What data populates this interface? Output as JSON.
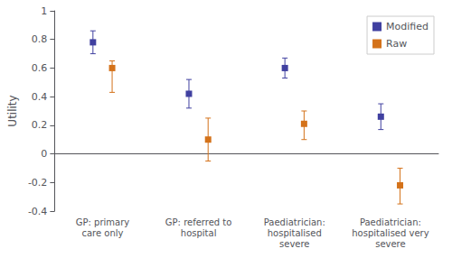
{
  "chart_data": {
    "type": "scatter",
    "categories": [
      "GP: primary\ncare only",
      "GP: referred to\nhospital",
      "Paediatrician:\nhospitalised\nsevere",
      "Paediatrician:\nhospitalised very\nsevere"
    ],
    "series": [
      {
        "name": "Modified",
        "color": "#4040A0",
        "values": [
          0.78,
          0.42,
          0.6,
          0.26
        ],
        "ci_lower": [
          0.7,
          0.32,
          0.53,
          0.17
        ],
        "ci_upper": [
          0.86,
          0.52,
          0.67,
          0.35
        ]
      },
      {
        "name": "Raw",
        "color": "#D4721A",
        "values": [
          0.6,
          0.1,
          0.21,
          -0.22
        ],
        "ci_lower": [
          0.43,
          -0.05,
          0.1,
          -0.35
        ],
        "ci_upper": [
          0.65,
          0.25,
          0.3,
          -0.1
        ]
      }
    ],
    "ylabel": "Utility",
    "ylim": [
      -0.4,
      1.0
    ],
    "yticks": [
      -0.4,
      -0.2,
      0.0,
      0.2,
      0.4,
      0.6,
      0.8,
      1.0
    ],
    "marker": "square",
    "legend": "upper right",
    "grid": false
  }
}
